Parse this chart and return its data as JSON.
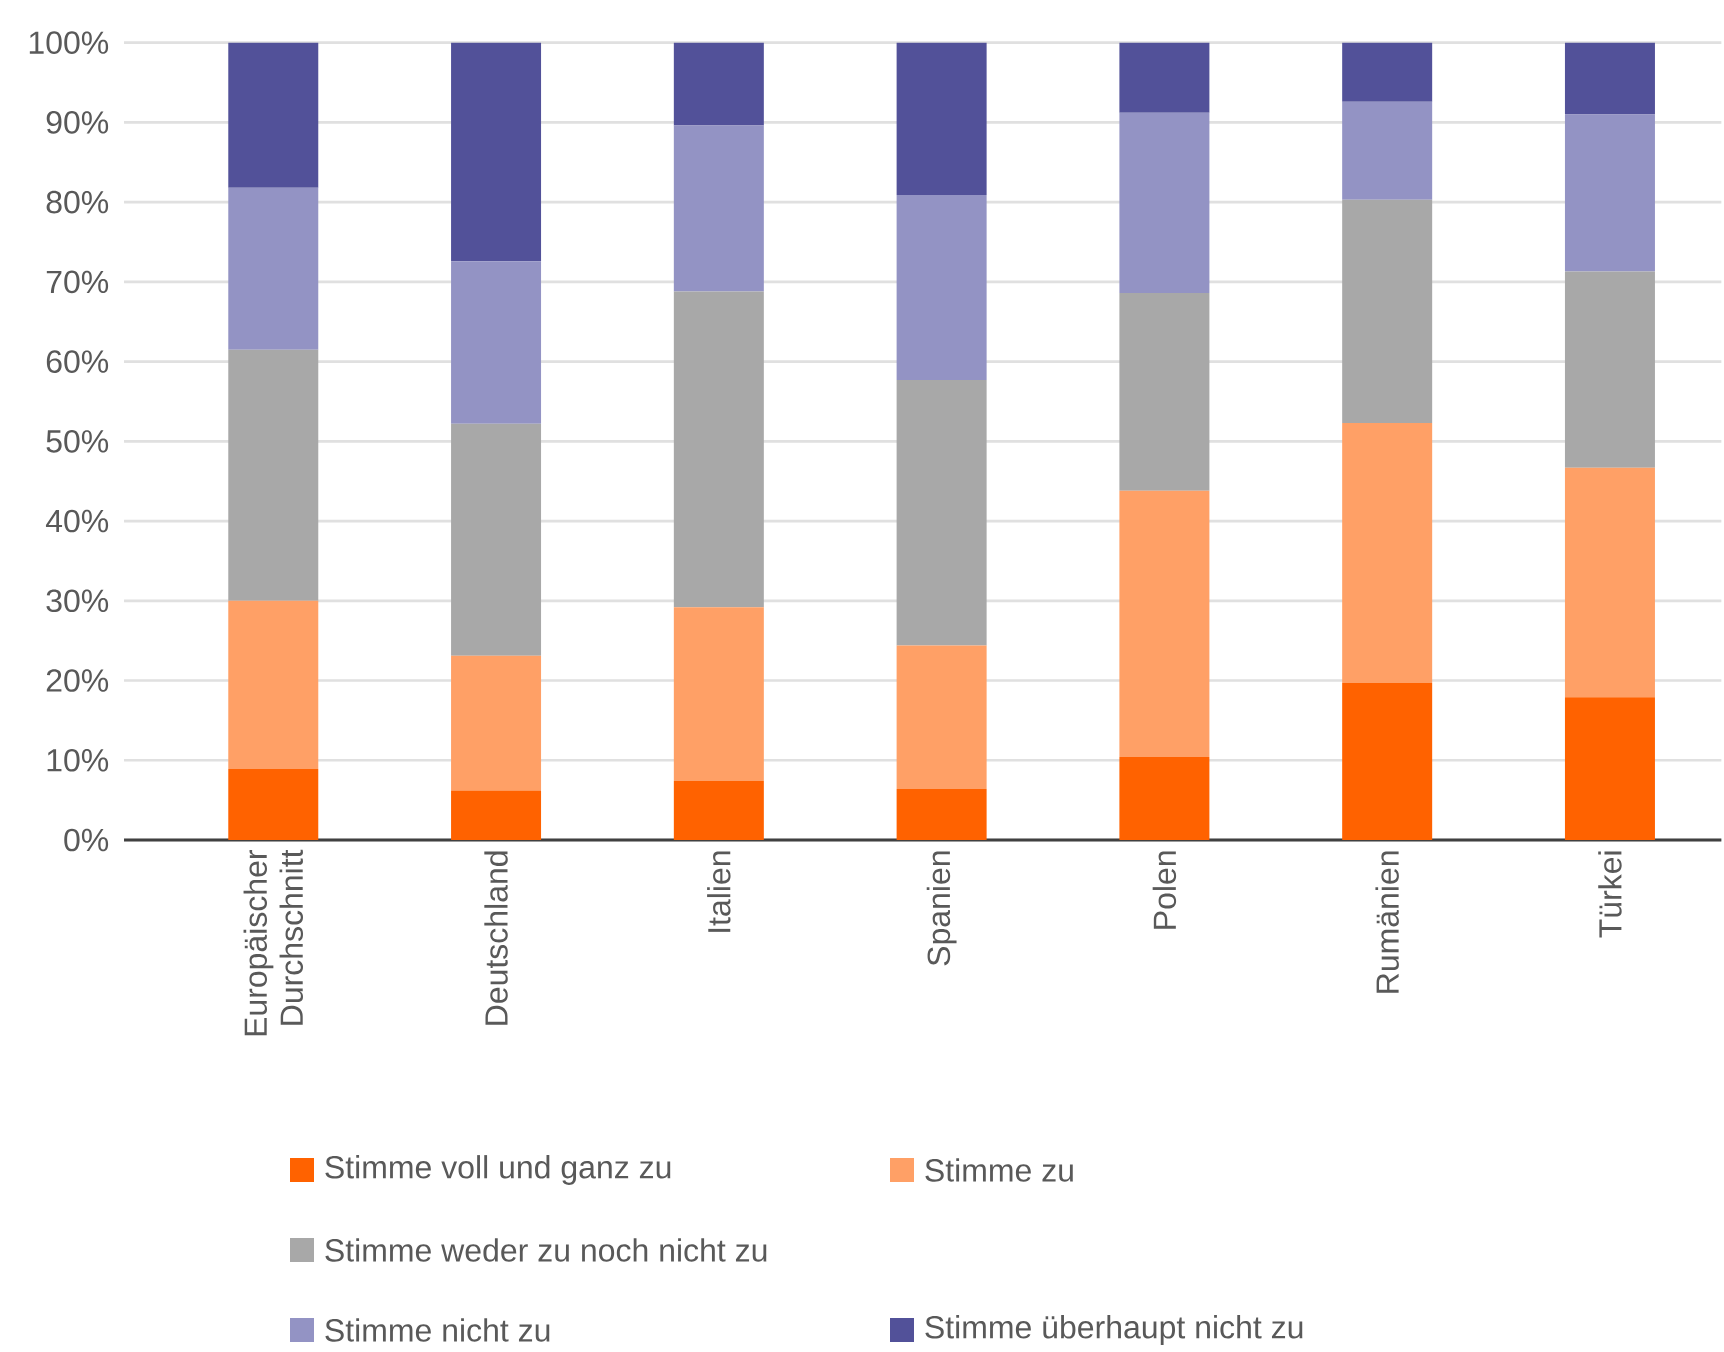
{
  "chart_data": {
    "type": "bar",
    "stacked": true,
    "categories": [
      "Europäischer Durchschnitt",
      "Deutschland",
      "Italien",
      "Spanien",
      "Polen",
      "Rumänien",
      "Türkei"
    ],
    "series": [
      {
        "name": "Stimme voll und ganz zu",
        "color": "#ff6200",
        "values": [
          8.9,
          6.2,
          7.4,
          6.4,
          10.4,
          19.7,
          17.9
        ]
      },
      {
        "name": "Stimme zu",
        "color": "#ffa066",
        "values": [
          21.1,
          16.9,
          21.8,
          18.0,
          33.4,
          32.6,
          28.8
        ]
      },
      {
        "name": "Stimme weder zu noch nicht zu",
        "color": "#a8a8a8",
        "values": [
          31.5,
          29.1,
          39.6,
          33.3,
          24.8,
          28.0,
          24.6
        ]
      },
      {
        "name": "Stimme nicht zu",
        "color": "#9393c4",
        "values": [
          20.3,
          20.4,
          20.8,
          23.2,
          22.6,
          12.3,
          19.7
        ]
      },
      {
        "name": "Stimme überhaupt nicht zu",
        "color": "#525199",
        "values": [
          18.2,
          27.4,
          10.4,
          19.1,
          8.8,
          7.4,
          9.0
        ]
      }
    ],
    "ylim": [
      0,
      100
    ],
    "yticks": [
      {
        "value": 0,
        "label": "0%"
      },
      {
        "value": 10,
        "label": "10%"
      },
      {
        "value": 20,
        "label": "20%"
      },
      {
        "value": 30,
        "label": "30%"
      },
      {
        "value": 40,
        "label": "40%"
      },
      {
        "value": 50,
        "label": "50%"
      },
      {
        "value": 60,
        "label": "60%"
      },
      {
        "value": 70,
        "label": "70%"
      },
      {
        "value": 80,
        "label": "80%"
      },
      {
        "value": 90,
        "label": "90%"
      },
      {
        "value": 100,
        "label": "100%"
      }
    ],
    "grid": "y",
    "legend": "bottom"
  }
}
